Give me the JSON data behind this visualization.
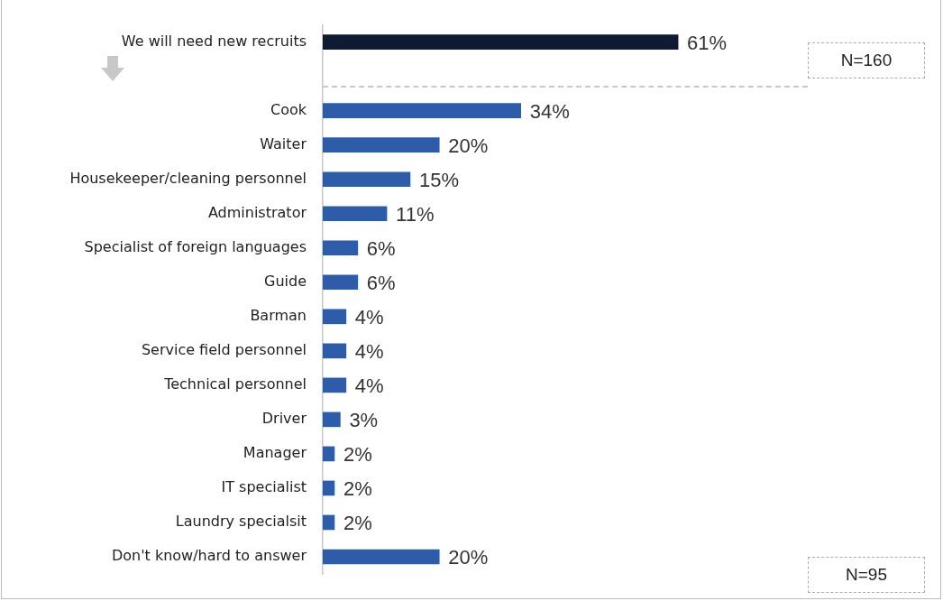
{
  "chart_data": {
    "type": "bar",
    "orientation": "horizontal",
    "categories": [
      "We will need new recruits",
      null,
      "Cook",
      "Waiter",
      "Housekeeper/cleaning personnel",
      "Administrator",
      "Specialist of foreign languages",
      "Guide",
      "Barman",
      "Service field personnel",
      "Technical personnel",
      "Driver",
      "Manager",
      "IT specialist",
      "Laundry specialsit",
      "Don't know/hard to answer"
    ],
    "values": [
      61,
      null,
      34,
      20,
      15,
      11,
      6,
      6,
      4,
      4,
      4,
      3,
      2,
      2,
      2,
      20
    ],
    "value_labels": [
      "61%",
      null,
      "34%",
      "20%",
      "15%",
      "11%",
      "6%",
      "6%",
      "4%",
      "4%",
      "4%",
      "3%",
      "2%",
      "2%",
      "2%",
      "20%"
    ],
    "colors": [
      "#0f1a33",
      "#2e5ca8",
      "#2e5ca8",
      "#2e5ca8",
      "#2e5ca8",
      "#2e5ca8",
      "#2e5ca8",
      "#2e5ca8",
      "#2e5ca8",
      "#2e5ca8",
      "#2e5ca8",
      "#2e5ca8",
      "#2e5ca8",
      "#2e5ca8",
      "#2e5ca8",
      "#2e5ca8"
    ],
    "annotations": [
      "N=160",
      "N=95"
    ]
  }
}
